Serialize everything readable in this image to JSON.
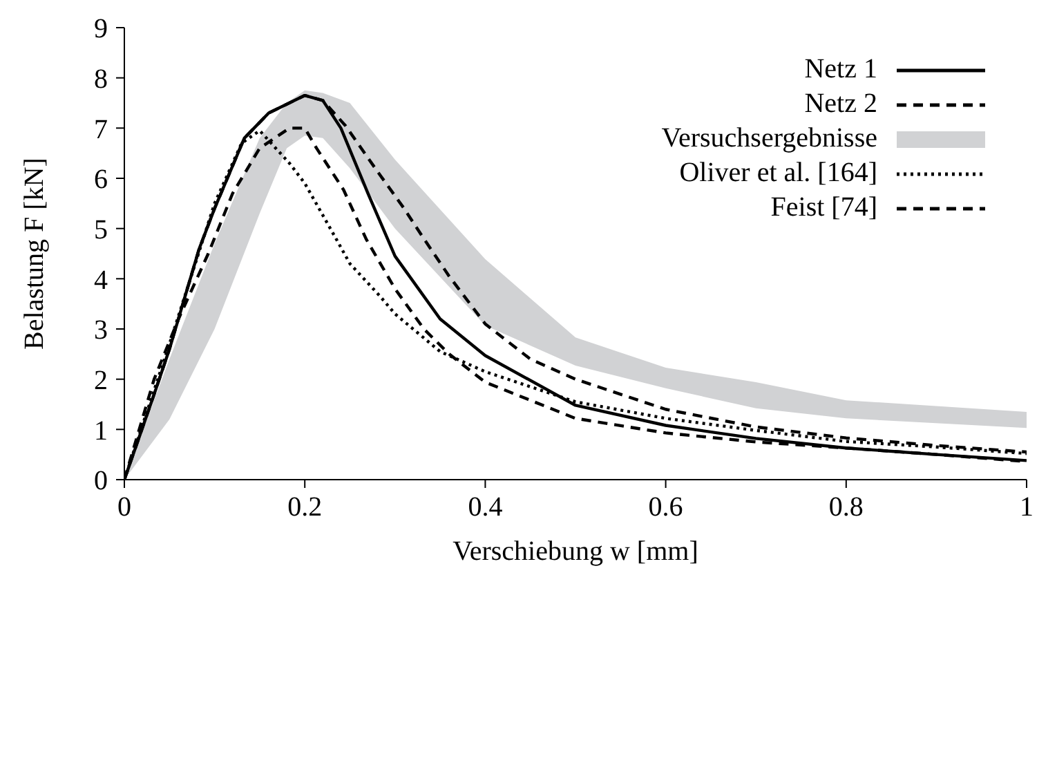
{
  "chart_data": {
    "type": "line",
    "xlabel": "Verschiebung w [mm]",
    "ylabel": "Belastung F [kN]",
    "xlim": [
      0,
      1
    ],
    "ylim": [
      0,
      9
    ],
    "xticks": [
      0,
      0.2,
      0.4,
      0.6,
      0.8,
      1
    ],
    "yticks": [
      0,
      1,
      2,
      3,
      4,
      5,
      6,
      7,
      8,
      9
    ],
    "grid": false,
    "legend": "top right",
    "marker": "none",
    "series": [
      {
        "name": "Netz 1",
        "color": "#000000",
        "line_style": "solid",
        "x": [
          0,
          0.033,
          0.05,
          0.083,
          0.1,
          0.133,
          0.16,
          0.2,
          0.22,
          0.24,
          0.27,
          0.3,
          0.35,
          0.4,
          0.5,
          0.6,
          0.7,
          0.8,
          0.9,
          1.0
        ],
        "values": [
          0,
          1.7,
          2.6,
          4.6,
          5.4,
          6.8,
          7.3,
          7.65,
          7.55,
          7.0,
          5.7,
          4.45,
          3.2,
          2.47,
          1.48,
          1.08,
          0.82,
          0.63,
          0.5,
          0.38
        ]
      },
      {
        "name": "Netz 2",
        "color": "#000000",
        "line_style": "dashed",
        "x": [
          0,
          0.033,
          0.05,
          0.083,
          0.1,
          0.133,
          0.16,
          0.2,
          0.22,
          0.245,
          0.28,
          0.31,
          0.33,
          0.36,
          0.4,
          0.45,
          0.5,
          0.6,
          0.7,
          0.8,
          0.9,
          1.0
        ],
        "values": [
          0,
          1.7,
          2.6,
          4.6,
          5.4,
          6.8,
          7.3,
          7.65,
          7.55,
          7.05,
          6.15,
          5.4,
          4.85,
          4.05,
          3.1,
          2.4,
          2.0,
          1.4,
          1.05,
          0.83,
          0.68,
          0.55
        ]
      },
      {
        "type": "area",
        "name": "Versuchsergebnisse",
        "color": "#d1d2d4",
        "x": [
          0,
          0.05,
          0.1,
          0.15,
          0.18,
          0.2,
          0.22,
          0.25,
          0.3,
          0.4,
          0.5,
          0.6,
          0.7,
          0.8,
          1.0
        ],
        "values": [
          null,
          null,
          null,
          null,
          null,
          null,
          null,
          null,
          null,
          null,
          null,
          null,
          null,
          null,
          null
        ],
        "lower": [
          0,
          1.2,
          3.0,
          5.3,
          6.6,
          6.85,
          6.8,
          6.2,
          5.0,
          3.07,
          2.27,
          1.82,
          1.42,
          1.22,
          1.03
        ],
        "upper": [
          0,
          2.4,
          4.7,
          6.8,
          7.5,
          7.75,
          7.7,
          7.5,
          6.37,
          4.39,
          2.83,
          2.23,
          1.94,
          1.58,
          1.35
        ]
      },
      {
        "name": "Oliver et al. [164]",
        "color": "#000000",
        "line_style": "dotted",
        "x": [
          0,
          0.05,
          0.1,
          0.13,
          0.15,
          0.183,
          0.2,
          0.233,
          0.25,
          0.283,
          0.3,
          0.35,
          0.4,
          0.5,
          0.6,
          0.7,
          0.8,
          0.9,
          1.0
        ],
        "values": [
          0,
          2.7,
          5.5,
          6.7,
          6.95,
          6.3,
          5.9,
          4.85,
          4.3,
          3.66,
          3.3,
          2.55,
          2.15,
          1.55,
          1.22,
          0.98,
          0.76,
          0.65,
          0.52
        ]
      },
      {
        "name": "Feist [74]",
        "color": "#000000",
        "line_style": "dashed",
        "x": [
          0,
          0.033,
          0.06,
          0.093,
          0.12,
          0.15,
          0.183,
          0.2,
          0.213,
          0.243,
          0.268,
          0.3,
          0.332,
          0.36,
          0.4,
          0.5,
          0.6,
          0.7,
          0.8,
          0.9,
          1.0
        ],
        "values": [
          0,
          2.0,
          3.2,
          4.5,
          5.7,
          6.6,
          7.0,
          7.0,
          6.6,
          5.77,
          4.79,
          3.8,
          3.0,
          2.5,
          1.94,
          1.22,
          0.93,
          0.75,
          0.63,
          0.5,
          0.36
        ]
      }
    ]
  }
}
